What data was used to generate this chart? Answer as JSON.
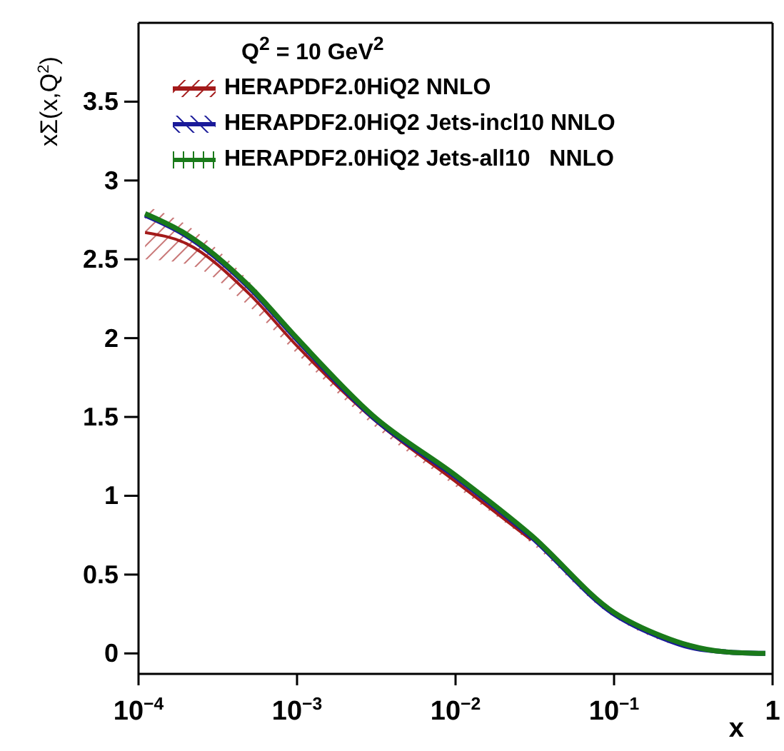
{
  "chart_data": {
    "type": "line",
    "xlabel": "x",
    "ylabel": "xΣ(x,Q$^{2}$)",
    "legend_title": "Q$^{2}$ = 10 GeV$^{2}$",
    "legend": "top left",
    "log": "x",
    "grid": false,
    "marker": "none",
    "line_style": "solid",
    "x": [
      0.00011,
      0.0002,
      0.0005,
      0.001,
      0.003,
      0.01,
      0.03,
      0.1,
      0.2,
      0.3,
      0.5,
      0.9
    ],
    "xlim": [
      0.0001,
      1
    ],
    "xticks": [
      {
        "value": 0.0001,
        "label": "10$^{−4}$"
      },
      {
        "value": 0.001,
        "label": "10$^{−3}$"
      },
      {
        "value": 0.01,
        "label": "10$^{−2}$"
      },
      {
        "value": 0.1,
        "label": "10$^{−1}$"
      },
      1
    ],
    "ylim": [
      -0.13,
      4
    ],
    "yticks": [
      0,
      0.5,
      1,
      1.5,
      2,
      2.5,
      3,
      3.5
    ],
    "series": [
      {
        "name": "HERAPDF2.0HiQ2 NNLO",
        "color": "#a31a1a",
        "values": [
          2.67,
          2.6,
          2.28,
          1.95,
          1.49,
          1.09,
          0.72,
          null,
          null,
          null,
          null,
          null
        ],
        "lower": [
          2.5,
          2.47,
          2.2,
          1.9,
          1.45,
          1.06,
          0.7,
          0.23,
          0.08,
          0.03,
          0,
          0
        ],
        "upper": [
          2.84,
          2.72,
          2.36,
          2.0,
          1.52,
          1.12,
          0.74,
          0.26,
          0.1,
          0.04,
          0.01,
          0
        ]
      },
      {
        "name": "HERAPDF2.0HiQ2 Jets-incl10 NNLO",
        "color": "#1a1a99",
        "values": [
          2.78,
          2.65,
          2.32,
          1.99,
          1.5,
          1.12,
          0.74,
          0.25,
          0.1,
          0.04,
          0.01,
          0
        ]
      },
      {
        "name": "HERAPDF2.0HiQ2 Jets-all10   NNLO",
        "color": "#1a7a1a",
        "values": [
          2.79,
          2.66,
          2.33,
          2.0,
          1.51,
          1.13,
          0.75,
          0.26,
          0.11,
          0.05,
          0.01,
          0
        ]
      }
    ]
  }
}
